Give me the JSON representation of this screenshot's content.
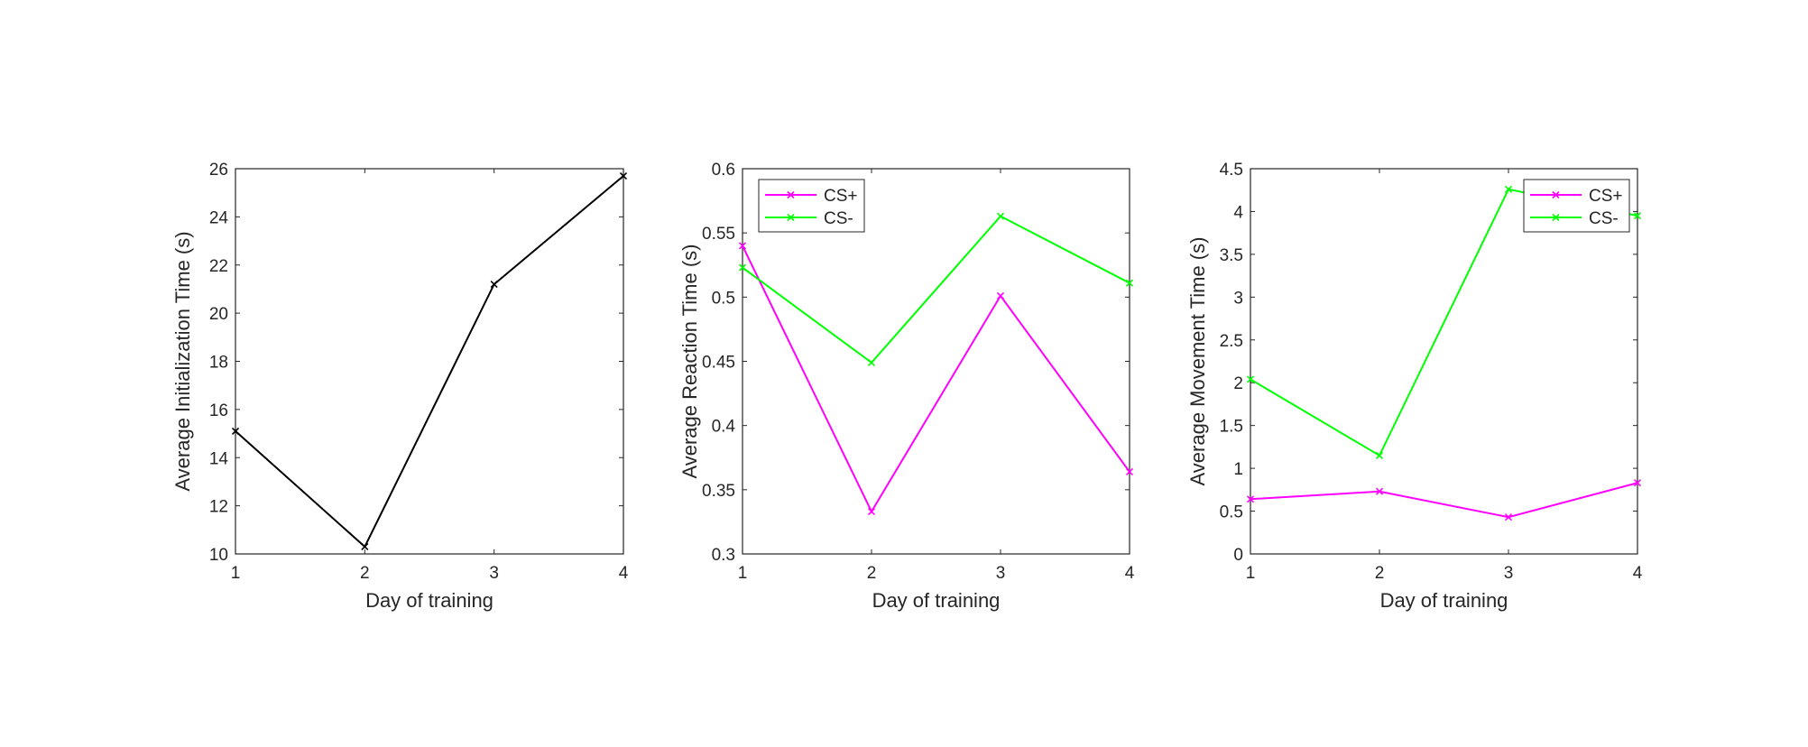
{
  "chart_data": [
    {
      "type": "line",
      "xlabel": "Day of training",
      "ylabel": "Average Initialization Time (s)",
      "x": [
        1,
        2,
        3,
        4
      ],
      "xlim": [
        1,
        4
      ],
      "ylim": [
        10,
        26
      ],
      "xticks": [
        "1",
        "2",
        "3",
        "4"
      ],
      "yticks": [
        "10",
        "12",
        "14",
        "16",
        "18",
        "20",
        "22",
        "24",
        "26"
      ],
      "grid": false,
      "legend": null,
      "series": [
        {
          "values": [
            15.1,
            10.3,
            21.2,
            25.7
          ],
          "color": "#000000",
          "marker": "x"
        }
      ]
    },
    {
      "type": "line",
      "xlabel": "Day of training",
      "ylabel": "Average Reaction Time (s)",
      "x": [
        1,
        2,
        3,
        4
      ],
      "xlim": [
        1,
        4
      ],
      "ylim": [
        0.3,
        0.6
      ],
      "xticks": [
        "1",
        "2",
        "3",
        "4"
      ],
      "yticks": [
        "0.3",
        "0.35",
        "0.4",
        "0.45",
        "0.5",
        "0.55",
        "0.6"
      ],
      "grid": false,
      "legend": "top-left",
      "series": [
        {
          "name": "CS+",
          "values": [
            0.54,
            0.333,
            0.501,
            0.364
          ],
          "color": "#ff00ff",
          "marker": "x"
        },
        {
          "name": "CS-",
          "values": [
            0.523,
            0.449,
            0.563,
            0.511
          ],
          "color": "#00ff00",
          "marker": "x"
        }
      ]
    },
    {
      "type": "line",
      "xlabel": "Day of training",
      "ylabel": "Average Movement Time (s)",
      "x": [
        1,
        2,
        3,
        4
      ],
      "xlim": [
        1,
        4
      ],
      "ylim": [
        0,
        4.5
      ],
      "xticks": [
        "1",
        "2",
        "3",
        "4"
      ],
      "yticks": [
        "0",
        "0.5",
        "1",
        "1.5",
        "2",
        "2.5",
        "3",
        "3.5",
        "4",
        "4.5"
      ],
      "grid": false,
      "legend": "top-right",
      "series": [
        {
          "name": "CS+",
          "values": [
            0.64,
            0.73,
            0.43,
            0.83
          ],
          "color": "#ff00ff",
          "marker": "x"
        },
        {
          "name": "CS-",
          "values": [
            2.04,
            1.15,
            4.26,
            3.95
          ],
          "color": "#00ff00",
          "marker": "x"
        }
      ]
    }
  ]
}
